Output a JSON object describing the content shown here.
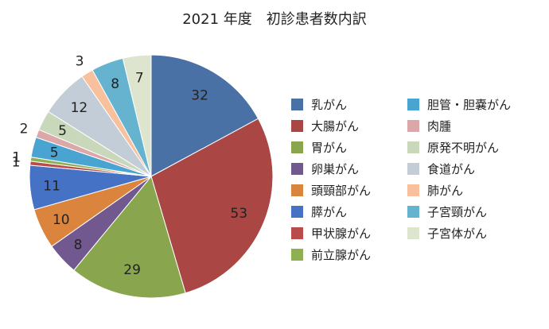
{
  "chart_data": {
    "type": "pie",
    "title": "2021 年度　初診患者数内訳",
    "start": "top",
    "direction": "clockwise",
    "legend_position": "right",
    "slices": [
      {
        "label": "乳がん",
        "value": 32,
        "color": "#4a71a6"
      },
      {
        "label": "大腸がん",
        "value": 53,
        "color": "#aa4644"
      },
      {
        "label": "胃がん",
        "value": 29,
        "color": "#89a54e"
      },
      {
        "label": "卵巣がん",
        "value": 8,
        "color": "#71588f"
      },
      {
        "label": "頭頸部がん",
        "value": 10,
        "color": "#db843d"
      },
      {
        "label": "膵がん",
        "value": 11,
        "color": "#4572c4"
      },
      {
        "label": "甲状腺がん",
        "value": 1,
        "color": "#b94c4a"
      },
      {
        "label": "前立腺がん",
        "value": 1,
        "color": "#8eb051"
      },
      {
        "label": "胆管・胆嚢がん",
        "value": 5,
        "color": "#4aa4d1"
      },
      {
        "label": "肉腫",
        "value": 2,
        "color": "#dba7a8"
      },
      {
        "label": "原発不明がん",
        "value": 5,
        "color": "#c9d8ba"
      },
      {
        "label": "食道がん",
        "value": 12,
        "color": "#c3cdd8"
      },
      {
        "label": "肺がん",
        "value": 3,
        "color": "#f8c09c"
      },
      {
        "label": "子宮頸がん",
        "value": 8,
        "color": "#66b3cf"
      },
      {
        "label": "子宮体がん",
        "value": 7,
        "color": "#dde5cf"
      }
    ]
  }
}
